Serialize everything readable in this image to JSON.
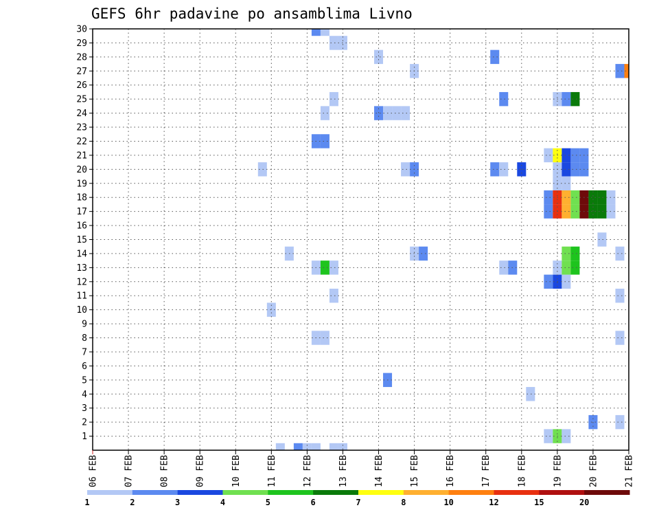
{
  "chart_data": {
    "type": "heatmap",
    "title": "GEFS 6hr padavine po ansamblima Livno",
    "x_ticks": [
      "06 FEB",
      "07 FEB",
      "08 FEB",
      "09 FEB",
      "10 FEB",
      "11 FEB",
      "12 FEB",
      "13 FEB",
      "14 FEB",
      "15 FEB",
      "16 FEB",
      "17 FEB",
      "18 FEB",
      "19 FEB",
      "20 FEB",
      "21 FEB"
    ],
    "y_ticks": [
      "1",
      "2",
      "3",
      "4",
      "5",
      "6",
      "7",
      "8",
      "9",
      "10",
      "11",
      "12",
      "13",
      "14",
      "15",
      "16",
      "17",
      "18",
      "19",
      "20",
      "21",
      "22",
      "23",
      "24",
      "25",
      "26",
      "27",
      "28",
      "29",
      "30"
    ],
    "xlim_days": [
      0,
      15
    ],
    "ylim": [
      0,
      30
    ],
    "grid": true,
    "levels": [
      "1",
      "2",
      "3",
      "4",
      "5",
      "6",
      "7",
      "8",
      "10",
      "12",
      "15",
      "20"
    ],
    "level_colors": [
      "#b3c8f5",
      "#5c8af0",
      "#1a48e0",
      "#70e050",
      "#1ec41e",
      "#0a7a0a",
      "#ffff10",
      "#ffb030",
      "#ff8010",
      "#e83010",
      "#b01010",
      "#6e0a0a"
    ],
    "cells": [
      {
        "day": 12.75,
        "member": 1,
        "level": 1
      },
      {
        "day": 13.0,
        "member": 1,
        "level": 4
      },
      {
        "day": 13.25,
        "member": 1,
        "level": 1
      },
      {
        "day": 14.0,
        "member": 2,
        "level": 2
      },
      {
        "day": 14.75,
        "member": 2,
        "level": 1
      },
      {
        "day": 12.25,
        "member": 4,
        "level": 1
      },
      {
        "day": 8.25,
        "member": 5,
        "level": 2
      },
      {
        "day": 6.25,
        "member": 8,
        "level": 1
      },
      {
        "day": 6.5,
        "member": 8,
        "level": 1
      },
      {
        "day": 14.75,
        "member": 8,
        "level": 1
      },
      {
        "day": 5.0,
        "member": 10,
        "level": 1
      },
      {
        "day": 6.75,
        "member": 11,
        "level": 1
      },
      {
        "day": 14.75,
        "member": 11,
        "level": 1
      },
      {
        "day": 12.75,
        "member": 12,
        "level": 2
      },
      {
        "day": 13.0,
        "member": 12,
        "level": 3
      },
      {
        "day": 13.25,
        "member": 12,
        "level": 1
      },
      {
        "day": 6.25,
        "member": 13,
        "level": 1
      },
      {
        "day": 6.5,
        "member": 13,
        "level": 5
      },
      {
        "day": 6.75,
        "member": 13,
        "level": 1
      },
      {
        "day": 11.5,
        "member": 13,
        "level": 1
      },
      {
        "day": 11.75,
        "member": 13,
        "level": 2
      },
      {
        "day": 13.0,
        "member": 13,
        "level": 1
      },
      {
        "day": 13.25,
        "member": 13,
        "level": 4
      },
      {
        "day": 13.5,
        "member": 13,
        "level": 5
      },
      {
        "day": 5.5,
        "member": 14,
        "level": 1
      },
      {
        "day": 9.0,
        "member": 14,
        "level": 1
      },
      {
        "day": 9.25,
        "member": 14,
        "level": 2
      },
      {
        "day": 13.25,
        "member": 14,
        "level": 4
      },
      {
        "day": 13.5,
        "member": 14,
        "level": 5
      },
      {
        "day": 14.75,
        "member": 14,
        "level": 1
      },
      {
        "day": 14.25,
        "member": 15,
        "level": 1
      },
      {
        "day": 12.75,
        "member": 17,
        "level": 2
      },
      {
        "day": 13.0,
        "member": 17,
        "level": 10
      },
      {
        "day": 13.25,
        "member": 17,
        "level": 8
      },
      {
        "day": 13.5,
        "member": 17,
        "level": 4
      },
      {
        "day": 13.75,
        "member": 17,
        "level": 12
      },
      {
        "day": 14.0,
        "member": 17,
        "level": 6
      },
      {
        "day": 14.25,
        "member": 17,
        "level": 6
      },
      {
        "day": 14.5,
        "member": 17,
        "level": 1
      },
      {
        "day": 12.75,
        "member": 18,
        "level": 2
      },
      {
        "day": 13.0,
        "member": 18,
        "level": 10
      },
      {
        "day": 13.25,
        "member": 18,
        "level": 8
      },
      {
        "day": 13.5,
        "member": 18,
        "level": 4
      },
      {
        "day": 13.75,
        "member": 18,
        "level": 12
      },
      {
        "day": 14.0,
        "member": 18,
        "level": 6
      },
      {
        "day": 14.25,
        "member": 18,
        "level": 6
      },
      {
        "day": 14.5,
        "member": 18,
        "level": 1
      },
      {
        "day": 13.0,
        "member": 19,
        "level": 1
      },
      {
        "day": 13.25,
        "member": 19,
        "level": 1
      },
      {
        "day": 4.75,
        "member": 20,
        "level": 1
      },
      {
        "day": 8.75,
        "member": 20,
        "level": 1
      },
      {
        "day": 9.0,
        "member": 20,
        "level": 2
      },
      {
        "day": 11.25,
        "member": 20,
        "level": 2
      },
      {
        "day": 11.5,
        "member": 20,
        "level": 1
      },
      {
        "day": 12.0,
        "member": 20,
        "level": 3
      },
      {
        "day": 13.0,
        "member": 20,
        "level": 1
      },
      {
        "day": 13.25,
        "member": 20,
        "level": 3
      },
      {
        "day": 13.5,
        "member": 20,
        "level": 2
      },
      {
        "day": 13.75,
        "member": 20,
        "level": 2
      },
      {
        "day": 12.75,
        "member": 21,
        "level": 1
      },
      {
        "day": 13.0,
        "member": 21,
        "level": 7
      },
      {
        "day": 13.25,
        "member": 21,
        "level": 3
      },
      {
        "day": 13.5,
        "member": 21,
        "level": 2
      },
      {
        "day": 13.75,
        "member": 21,
        "level": 2
      },
      {
        "day": 6.25,
        "member": 22,
        "level": 2
      },
      {
        "day": 6.5,
        "member": 22,
        "level": 2
      },
      {
        "day": 6.5,
        "member": 24,
        "level": 1
      },
      {
        "day": 8.0,
        "member": 24,
        "level": 2
      },
      {
        "day": 8.25,
        "member": 24,
        "level": 1
      },
      {
        "day": 8.5,
        "member": 24,
        "level": 1
      },
      {
        "day": 8.75,
        "member": 24,
        "level": 1
      },
      {
        "day": 6.75,
        "member": 25,
        "level": 1
      },
      {
        "day": 11.5,
        "member": 25,
        "level": 2
      },
      {
        "day": 13.0,
        "member": 25,
        "level": 1
      },
      {
        "day": 13.25,
        "member": 25,
        "level": 2
      },
      {
        "day": 13.5,
        "member": 25,
        "level": 6
      },
      {
        "day": 9.0,
        "member": 27,
        "level": 1
      },
      {
        "day": 14.75,
        "member": 27,
        "level": 2
      },
      {
        "day": 15.0,
        "member": 27,
        "level": 9
      },
      {
        "day": 8.0,
        "member": 28,
        "level": 1
      },
      {
        "day": 11.25,
        "member": 28,
        "level": 2
      },
      {
        "day": 6.75,
        "member": 29,
        "level": 1
      },
      {
        "day": 7.0,
        "member": 29,
        "level": 1
      },
      {
        "day": 6.25,
        "member": 30,
        "level": 2
      },
      {
        "day": 6.5,
        "member": 30,
        "level": 1
      },
      {
        "day": 5.25,
        "member": 0,
        "level": 1
      },
      {
        "day": 5.75,
        "member": 0,
        "level": 2
      },
      {
        "day": 6.0,
        "member": 0,
        "level": 1
      },
      {
        "day": 6.25,
        "member": 0,
        "level": 1
      },
      {
        "day": 6.75,
        "member": 0,
        "level": 1
      },
      {
        "day": 7.0,
        "member": 0,
        "level": 1
      }
    ]
  }
}
